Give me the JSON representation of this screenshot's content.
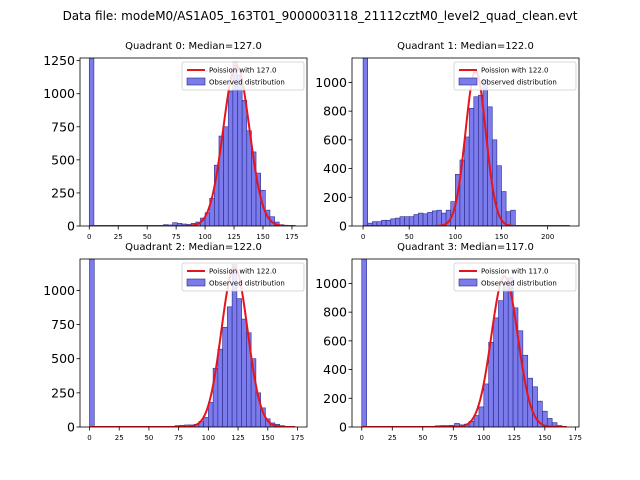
{
  "figure_title": "Data file: modeM0/AS1A05_163T01_9000003118_21112cztM0_level2_quad_clean.evt",
  "colors": {
    "bar_fill": "#7b7bec",
    "bar_edge": "#2a2a8c",
    "curve": "#e8141c"
  },
  "chart_data": [
    {
      "type": "bar",
      "title": "Quadrant 0: Median=127.0",
      "median": 127,
      "xticks": [
        0,
        25,
        50,
        75,
        100,
        125,
        150,
        175
      ],
      "yticks": [
        0,
        250,
        500,
        750,
        1000,
        1250
      ],
      "xlim": [
        -8,
        188
      ],
      "ylim": [
        0,
        1270
      ],
      "bin_width": 4,
      "legend": {
        "position": "top-right",
        "curve_label": "Poission with 127.0",
        "bar_label": "Observed distribution"
      },
      "spike": {
        "x": 0,
        "value": 1270
      },
      "bins": [
        [
          56,
          5
        ],
        [
          60,
          5
        ],
        [
          64,
          10
        ],
        [
          68,
          8
        ],
        [
          72,
          25
        ],
        [
          76,
          20
        ],
        [
          80,
          15
        ],
        [
          84,
          12
        ],
        [
          88,
          20
        ],
        [
          92,
          30
        ],
        [
          96,
          60
        ],
        [
          100,
          100
        ],
        [
          104,
          210
        ],
        [
          108,
          460
        ],
        [
          112,
          680
        ],
        [
          116,
          750
        ],
        [
          120,
          1020
        ],
        [
          124,
          1240
        ],
        [
          128,
          1140
        ],
        [
          132,
          950
        ],
        [
          136,
          720
        ],
        [
          140,
          560
        ],
        [
          144,
          400
        ],
        [
          148,
          270
        ],
        [
          152,
          120
        ],
        [
          156,
          70
        ],
        [
          160,
          30
        ],
        [
          164,
          10
        ]
      ],
      "poisson": {
        "mean": 127,
        "peak": 1215,
        "sigma": 11.3
      }
    },
    {
      "type": "bar",
      "title": "Quadrant 1: Median=122.0",
      "median": 122,
      "xticks": [
        0,
        50,
        100,
        150,
        200
      ],
      "yticks": [
        0,
        200,
        400,
        600,
        800,
        1000
      ],
      "xlim": [
        -12,
        234
      ],
      "ylim": [
        0,
        1170
      ],
      "bin_width": 5,
      "legend": {
        "position": "top-right",
        "curve_label": "Poission with 122.0",
        "bar_label": "Observed distribution"
      },
      "spike": {
        "x": 0,
        "value": 1170
      },
      "bins": [
        [
          5,
          20
        ],
        [
          10,
          30
        ],
        [
          15,
          30
        ],
        [
          20,
          40
        ],
        [
          25,
          40
        ],
        [
          30,
          50
        ],
        [
          35,
          55
        ],
        [
          40,
          65
        ],
        [
          45,
          65
        ],
        [
          50,
          65
        ],
        [
          55,
          80
        ],
        [
          60,
          90
        ],
        [
          65,
          85
        ],
        [
          70,
          95
        ],
        [
          75,
          105
        ],
        [
          80,
          110
        ],
        [
          85,
          90
        ],
        [
          90,
          110
        ],
        [
          95,
          170
        ],
        [
          100,
          360
        ],
        [
          105,
          460
        ],
        [
          110,
          620
        ],
        [
          115,
          820
        ],
        [
          120,
          900
        ],
        [
          125,
          910
        ],
        [
          130,
          1020
        ],
        [
          135,
          830
        ],
        [
          140,
          600
        ],
        [
          145,
          420
        ],
        [
          150,
          240
        ],
        [
          155,
          100
        ],
        [
          160,
          110
        ]
      ],
      "poisson": {
        "mean": 122,
        "peak": 1080,
        "sigma": 11
      }
    },
    {
      "type": "bar",
      "title": "Quadrant 2: Median=122.0",
      "median": 122,
      "xticks": [
        0,
        25,
        50,
        75,
        100,
        125,
        150,
        175
      ],
      "yticks": [
        0,
        250,
        500,
        750,
        1000
      ],
      "xlim": [
        -8,
        183
      ],
      "ylim": [
        0,
        1230
      ],
      "bin_width": 4,
      "legend": {
        "position": "top-right",
        "curve_label": "Poission with 122.0",
        "bar_label": "Observed distribution"
      },
      "spike": {
        "x": 0,
        "value": 1230
      },
      "bins": [
        [
          64,
          5
        ],
        [
          68,
          5
        ],
        [
          72,
          10
        ],
        [
          76,
          12
        ],
        [
          80,
          15
        ],
        [
          84,
          15
        ],
        [
          88,
          20
        ],
        [
          92,
          40
        ],
        [
          96,
          70
        ],
        [
          100,
          180
        ],
        [
          104,
          430
        ],
        [
          108,
          570
        ],
        [
          112,
          730
        ],
        [
          116,
          880
        ],
        [
          120,
          1190
        ],
        [
          124,
          940
        ],
        [
          128,
          790
        ],
        [
          132,
          690
        ],
        [
          136,
          500
        ],
        [
          140,
          250
        ],
        [
          144,
          140
        ],
        [
          148,
          60
        ],
        [
          152,
          30
        ],
        [
          156,
          20
        ],
        [
          160,
          10
        ],
        [
          164,
          5
        ]
      ],
      "poisson": {
        "mean": 122,
        "peak": 1170,
        "sigma": 11
      }
    },
    {
      "type": "bar",
      "title": "Quadrant 3: Median=117.0",
      "median": 117,
      "xticks": [
        0,
        25,
        50,
        75,
        100,
        125,
        150,
        175
      ],
      "yticks": [
        0,
        200,
        400,
        600,
        800,
        1000
      ],
      "xlim": [
        -8,
        178
      ],
      "ylim": [
        0,
        1170
      ],
      "bin_width": 4,
      "legend": {
        "position": "top-right",
        "curve_label": "Poission with 117.0",
        "bar_label": "Observed distribution"
      },
      "spike": {
        "x": 0,
        "value": 1170
      },
      "bins": [
        [
          52,
          5
        ],
        [
          56,
          5
        ],
        [
          60,
          8
        ],
        [
          64,
          10
        ],
        [
          68,
          10
        ],
        [
          72,
          12
        ],
        [
          76,
          25
        ],
        [
          80,
          15
        ],
        [
          84,
          20
        ],
        [
          88,
          40
        ],
        [
          92,
          80
        ],
        [
          96,
          140
        ],
        [
          100,
          300
        ],
        [
          104,
          590
        ],
        [
          108,
          760
        ],
        [
          112,
          880
        ],
        [
          116,
          1010
        ],
        [
          120,
          1040
        ],
        [
          124,
          830
        ],
        [
          128,
          670
        ],
        [
          132,
          500
        ],
        [
          136,
          340
        ],
        [
          140,
          280
        ],
        [
          144,
          180
        ],
        [
          148,
          110
        ],
        [
          152,
          60
        ],
        [
          156,
          30
        ],
        [
          160,
          10
        ]
      ],
      "poisson": {
        "mean": 117,
        "peak": 1050,
        "sigma": 10.8
      }
    }
  ]
}
